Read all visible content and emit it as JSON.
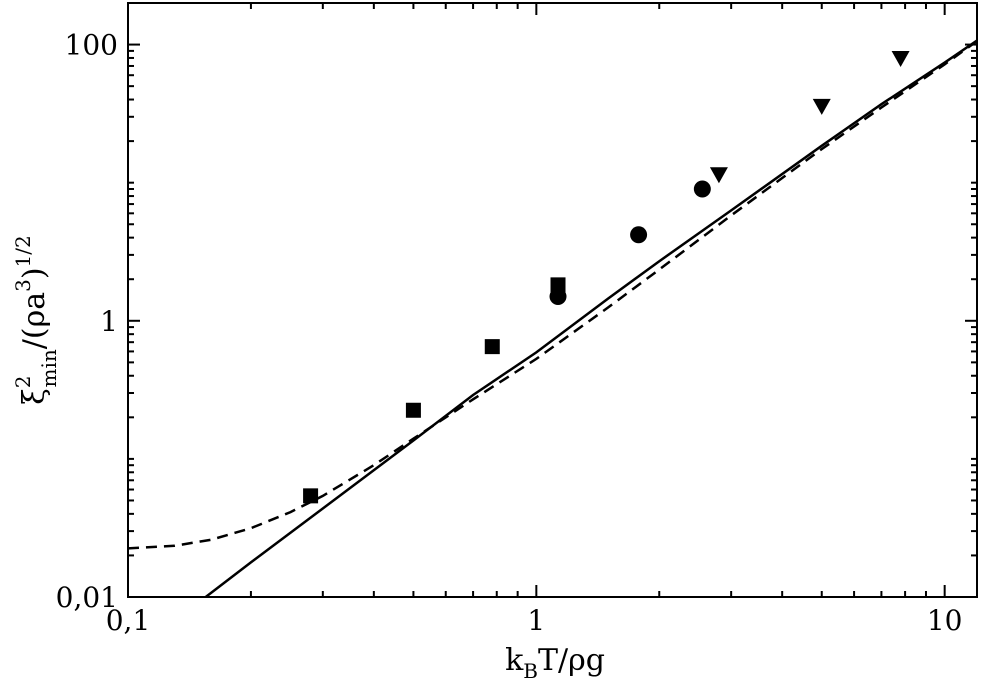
{
  "chart_data": {
    "type": "scatter",
    "x_scale": "log",
    "y_scale": "log",
    "xlim": [
      0.1,
      12
    ],
    "ylim": [
      0.01,
      200
    ],
    "grid": false,
    "xlabel": {
      "base": "k",
      "sub": "B",
      "rest": "T/ρg"
    },
    "ylabel": {
      "xi": "ξ",
      "sup": "2",
      "sub": "min",
      "mid": "/(ρa",
      "sup2": "3",
      "close": ")",
      "sup3": "1/2"
    },
    "x_ticks": [
      {
        "value": 0.1,
        "label": "0,1"
      },
      {
        "value": 1,
        "label": "1"
      },
      {
        "value": 10,
        "label": "10"
      }
    ],
    "y_ticks": [
      {
        "value": 0.01,
        "label": "0,01"
      },
      {
        "value": 1,
        "label": "1"
      },
      {
        "value": 100,
        "label": "100"
      }
    ],
    "series": [
      {
        "marker": "square",
        "points": [
          {
            "x": 0.28,
            "y": 0.054
          },
          {
            "x": 0.5,
            "y": 0.225
          },
          {
            "x": 0.78,
            "y": 0.65
          },
          {
            "x": 1.13,
            "y": 1.82
          }
        ]
      },
      {
        "marker": "circle",
        "points": [
          {
            "x": 1.13,
            "y": 1.5
          },
          {
            "x": 1.78,
            "y": 4.2
          },
          {
            "x": 2.55,
            "y": 9.0
          }
        ]
      },
      {
        "marker": "triangle-down",
        "points": [
          {
            "x": 2.8,
            "y": 11.5
          },
          {
            "x": 5.0,
            "y": 36.0
          },
          {
            "x": 7.8,
            "y": 80.0
          }
        ]
      }
    ],
    "lines": [
      {
        "style": "solid",
        "points": [
          {
            "x": 0.155,
            "y": 0.01
          },
          {
            "x": 0.2,
            "y": 0.0178
          },
          {
            "x": 0.3,
            "y": 0.0437
          },
          {
            "x": 0.5,
            "y": 0.136
          },
          {
            "x": 0.7,
            "y": 0.29
          },
          {
            "x": 1.0,
            "y": 0.59
          },
          {
            "x": 1.5,
            "y": 1.45
          },
          {
            "x": 2.0,
            "y": 2.7
          },
          {
            "x": 3.0,
            "y": 6.3
          },
          {
            "x": 5.0,
            "y": 18.5
          },
          {
            "x": 7.0,
            "y": 37
          },
          {
            "x": 10.0,
            "y": 74
          },
          {
            "x": 12.0,
            "y": 107
          }
        ]
      },
      {
        "style": "dashed",
        "points": [
          {
            "x": 0.1,
            "y": 0.0225
          },
          {
            "x": 0.13,
            "y": 0.0235
          },
          {
            "x": 0.16,
            "y": 0.026
          },
          {
            "x": 0.2,
            "y": 0.0315
          },
          {
            "x": 0.25,
            "y": 0.0412
          },
          {
            "x": 0.3,
            "y": 0.054
          },
          {
            "x": 0.4,
            "y": 0.09
          },
          {
            "x": 0.5,
            "y": 0.14
          },
          {
            "x": 0.7,
            "y": 0.27
          },
          {
            "x": 1.0,
            "y": 0.53
          },
          {
            "x": 1.5,
            "y": 1.25
          },
          {
            "x": 2.0,
            "y": 2.35
          },
          {
            "x": 3.0,
            "y": 5.8
          },
          {
            "x": 5.0,
            "y": 17.5
          },
          {
            "x": 7.0,
            "y": 35
          },
          {
            "x": 10.0,
            "y": 72
          },
          {
            "x": 12.0,
            "y": 106
          }
        ]
      }
    ]
  }
}
